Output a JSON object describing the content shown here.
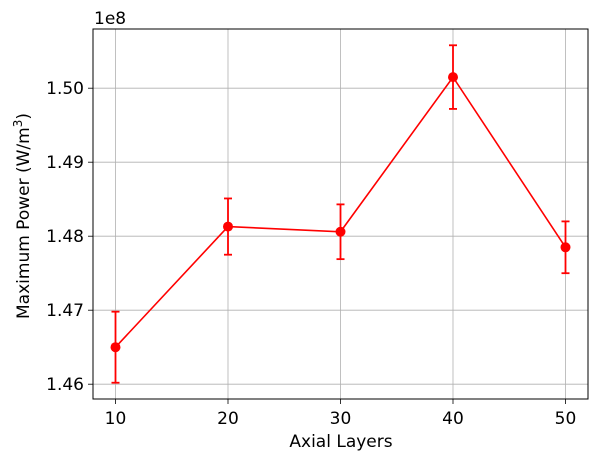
{
  "chart_data": {
    "type": "line",
    "xlabel": "Axial Layers",
    "ylabel": "Maximum Power (W/m",
    "ylabel_superscript": "3",
    "ylabel_close": ")",
    "y_offset_label": "1e8",
    "x": [
      10,
      20,
      30,
      40,
      50
    ],
    "y": [
      146500000,
      148130000,
      148060000,
      150150000,
      147850000
    ],
    "yerr": [
      480000,
      380000,
      370000,
      430000,
      350000
    ],
    "xlim": [
      8,
      52
    ],
    "ylim": [
      145800000,
      150800000
    ],
    "xticks": [
      10,
      20,
      30,
      40,
      50
    ],
    "xtick_labels": [
      "10",
      "20",
      "30",
      "40",
      "50"
    ],
    "yticks": [
      146000000,
      147000000,
      148000000,
      149000000,
      150000000
    ],
    "ytick_labels": [
      "1.46",
      "1.47",
      "1.48",
      "1.49",
      "1.50"
    ],
    "grid": true,
    "color": "#ff0000",
    "marker": "circle"
  }
}
